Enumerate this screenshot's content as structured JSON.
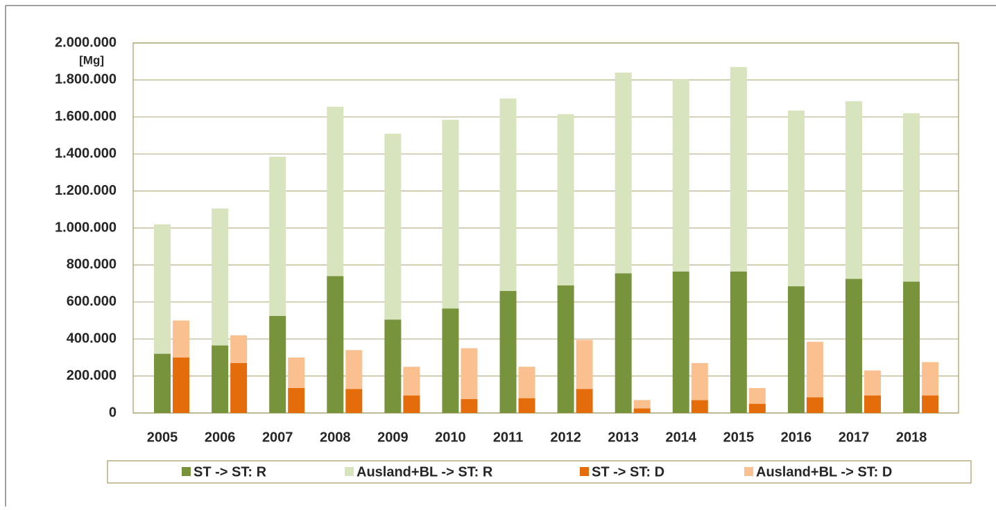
{
  "chart_data": {
    "type": "stacked-grouped-bar",
    "annotations": [
      "[Mg]"
    ],
    "categories": [
      "2005",
      "2006",
      "2007",
      "2008",
      "2009",
      "2010",
      "2011",
      "2012",
      "2013",
      "2014",
      "2015",
      "2016",
      "2017",
      "2018"
    ],
    "series": [
      {
        "name": "ST -> ST: R",
        "color": "#77933c",
        "stack": 0,
        "values": [
          320000,
          365000,
          525000,
          740000,
          505000,
          565000,
          660000,
          690000,
          755000,
          765000,
          765000,
          685000,
          725000,
          710000
        ]
      },
      {
        "name": "Ausland+BL -> ST: R",
        "color": "#d7e4bd",
        "stack": 0,
        "values": [
          700000,
          740000,
          860000,
          915000,
          1005000,
          1020000,
          1040000,
          925000,
          1085000,
          1040000,
          1105000,
          950000,
          960000,
          910000
        ]
      },
      {
        "name": "ST -> ST: D",
        "color": "#e46c0a",
        "stack": 1,
        "values": [
          300000,
          270000,
          135000,
          130000,
          95000,
          75000,
          80000,
          130000,
          25000,
          70000,
          50000,
          85000,
          95000,
          95000
        ]
      },
      {
        "name": "Ausland+BL -> ST: D",
        "color": "#fac090",
        "stack": 1,
        "values": [
          200000,
          150000,
          165000,
          210000,
          155000,
          275000,
          170000,
          265000,
          45000,
          200000,
          85000,
          300000,
          135000,
          180000
        ]
      }
    ],
    "ylim": [
      0,
      2000000
    ],
    "yticks": [
      0,
      {
        "value": 200000,
        "label": "200.000"
      },
      {
        "value": 400000,
        "label": "400.000"
      },
      {
        "value": 600000,
        "label": "600.000"
      },
      {
        "value": 800000,
        "label": "800.000"
      },
      {
        "value": 1000000,
        "label": "1.000.000"
      },
      {
        "value": 1200000,
        "label": "1.200.000"
      },
      {
        "value": 1400000,
        "label": "1.400.000"
      },
      {
        "value": 1600000,
        "label": "1.600.000"
      },
      {
        "value": 1800000,
        "label": "1.800.000"
      },
      {
        "value": 2000000,
        "label": "2.000.000"
      }
    ],
    "grid": true,
    "legend": "bottom"
  }
}
